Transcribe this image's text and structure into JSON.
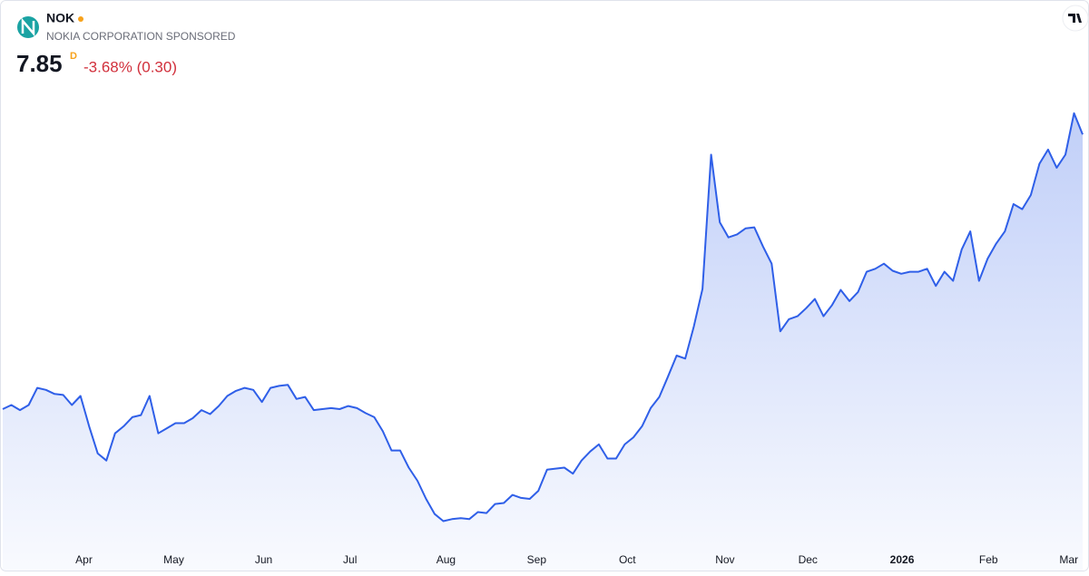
{
  "header": {
    "symbol": "NOK",
    "name": "NOKIA CORPORATION SPONSORED",
    "price": 7.85,
    "interval": "D",
    "change": "-3.68% (0.30)"
  },
  "chart_data": {
    "type": "area",
    "color": "#2f5fe8",
    "values": [
      5.13,
      5.17,
      5.12,
      5.17,
      5.34,
      5.32,
      5.28,
      5.27,
      5.17,
      5.26,
      4.96,
      4.69,
      4.62,
      4.89,
      4.96,
      5.05,
      5.07,
      5.26,
      4.89,
      4.94,
      4.99,
      4.99,
      5.04,
      5.12,
      5.08,
      5.16,
      5.26,
      5.31,
      5.34,
      5.32,
      5.2,
      5.34,
      5.36,
      5.37,
      5.23,
      5.25,
      5.12,
      5.13,
      5.14,
      5.13,
      5.16,
      5.14,
      5.09,
      5.05,
      4.91,
      4.72,
      4.72,
      4.55,
      4.42,
      4.24,
      4.09,
      4.02,
      4.04,
      4.05,
      4.04,
      4.11,
      4.1,
      4.19,
      4.2,
      4.28,
      4.25,
      4.24,
      4.32,
      4.53,
      4.54,
      4.55,
      4.49,
      4.62,
      4.71,
      4.78,
      4.64,
      4.64,
      4.78,
      4.85,
      4.96,
      5.14,
      5.25,
      5.45,
      5.66,
      5.63,
      5.95,
      6.32,
      7.65,
      6.98,
      6.83,
      6.86,
      6.92,
      6.93,
      6.74,
      6.57,
      5.9,
      6.02,
      6.05,
      6.13,
      6.22,
      6.05,
      6.16,
      6.31,
      6.2,
      6.29,
      6.49,
      6.52,
      6.57,
      6.5,
      6.47,
      6.49,
      6.49,
      6.52,
      6.35,
      6.49,
      6.4,
      6.71,
      6.89,
      6.4,
      6.62,
      6.77,
      6.89,
      7.16,
      7.11,
      7.25,
      7.56,
      7.7,
      7.52,
      7.65,
      8.06,
      7.85
    ],
    "xlim": [
      0,
      125
    ],
    "xticks": [
      {
        "value": 9.4,
        "label": "Apr"
      },
      {
        "value": 19.8,
        "label": "May"
      },
      {
        "value": 30.2,
        "label": "Jun"
      },
      {
        "value": 40.2,
        "label": "Jul"
      },
      {
        "value": 51.3,
        "label": "Aug"
      },
      {
        "value": 61.8,
        "label": "Sep"
      },
      {
        "value": 72.3,
        "label": "Oct"
      },
      {
        "value": 83.6,
        "label": "Nov"
      },
      {
        "value": 93.2,
        "label": "Dec"
      },
      {
        "value": 104.1,
        "label": "2026"
      },
      {
        "value": 114.1,
        "label": "Feb"
      },
      {
        "value": 123.4,
        "label": "Mar"
      }
    ],
    "ylim": [
      3.8,
      8.4
    ]
  }
}
